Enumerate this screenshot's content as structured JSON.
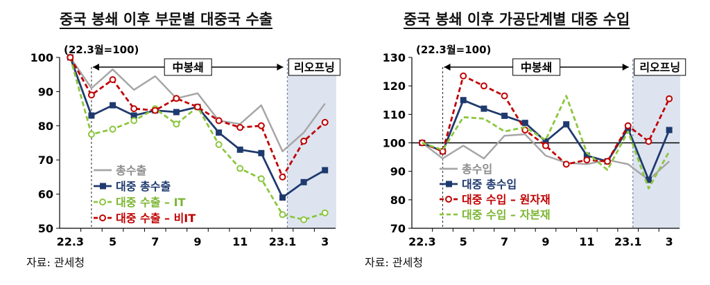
{
  "chart_data": [
    {
      "type": "line",
      "title": "중국 봉쇄 이후 부문별 대중국 수출",
      "unit_note": "(22.3월=100)",
      "x": [
        "22.3",
        "22.4",
        "5",
        "22.6",
        "7",
        "22.8",
        "9",
        "22.10",
        "11",
        "22.12",
        "23.1",
        "23.2",
        "3"
      ],
      "xtick_labels": [
        "22.3",
        "5",
        "7",
        "9",
        "11",
        "23.1",
        "3"
      ],
      "xtick_positions": [
        0,
        2,
        4,
        6,
        8,
        10,
        12
      ],
      "ylim": [
        50,
        100
      ],
      "yticks": [
        50,
        60,
        70,
        80,
        90,
        100
      ],
      "lockdown_label": "中봉쇄",
      "reopening_label": "리오프닝",
      "lockdown_range": [
        1,
        10
      ],
      "reopening_range": [
        10,
        12
      ],
      "series": [
        {
          "name": "총수출",
          "style": "gray",
          "values": [
            100,
            91,
            96.5,
            90.5,
            94.5,
            88,
            89.5,
            81.5,
            80.5,
            86,
            72.5,
            78,
            86.5
          ]
        },
        {
          "name": "대중 총수출",
          "style": "navy",
          "values": [
            100,
            83,
            86,
            83,
            84.5,
            84,
            85.5,
            78,
            73,
            72,
            59,
            63.5,
            67
          ]
        },
        {
          "name": "대중 수출 – IT",
          "style": "green",
          "values": [
            100,
            77.5,
            79,
            81.5,
            85,
            80.5,
            85.5,
            74.5,
            67.5,
            64.5,
            54,
            52.5,
            54.5
          ]
        },
        {
          "name": "대중 수출 – 비IT",
          "style": "red",
          "values": [
            100,
            89,
            93.5,
            85,
            84.5,
            88,
            85.5,
            81.5,
            79.5,
            80,
            65,
            75.5,
            81
          ]
        }
      ],
      "legend_position": "bottom-left",
      "source": "자료: 관세청"
    },
    {
      "type": "line",
      "title": "중국 봉쇄 이후 가공단계별 대중 수입",
      "unit_note": "(22.3월=100)",
      "x": [
        "22.3",
        "22.4",
        "5",
        "22.6",
        "7",
        "22.8",
        "9",
        "22.10",
        "11",
        "22.12",
        "23.1",
        "23.2",
        "3"
      ],
      "xtick_labels": [
        "22.3",
        "5",
        "7",
        "9",
        "11",
        "23.1",
        "3"
      ],
      "xtick_positions": [
        0,
        2,
        4,
        6,
        8,
        10,
        12
      ],
      "ylim": [
        70,
        130
      ],
      "yticks": [
        70,
        80,
        90,
        100,
        110,
        120,
        130
      ],
      "reference_line": 100,
      "lockdown_label": "中봉쇄",
      "reopening_label": "리오프닝",
      "lockdown_range": [
        1,
        10
      ],
      "reopening_range": [
        10,
        12
      ],
      "series": [
        {
          "name": "총수입",
          "style": "gray",
          "values": [
            100,
            94.5,
            99,
            94.5,
            102.5,
            103,
            95.5,
            93,
            92.5,
            94,
            92.5,
            87,
            93.5
          ]
        },
        {
          "name": "대중 총수입",
          "style": "navy",
          "values": [
            100,
            97,
            115,
            112,
            109.5,
            107,
            100.5,
            106.5,
            95.5,
            93.5,
            105,
            87,
            104.5
          ]
        },
        {
          "name": "대중 수입 – 원자재",
          "style": "red",
          "values": [
            100,
            97,
            123.5,
            120,
            116.5,
            104.5,
            99,
            92.5,
            94,
            93.5,
            106,
            100.5,
            115.5
          ]
        },
        {
          "name": "대중 수입 – 자본재",
          "style": "green",
          "values": [
            100,
            97.5,
            109,
            108.5,
            104,
            105.5,
            101,
            116.5,
            96.5,
            90.5,
            104,
            84,
            97
          ]
        }
      ],
      "legend_position": "bottom-left",
      "source": "자료: 관세청"
    }
  ],
  "colors": {
    "gray": "#a6a6a6",
    "navy": "#1f3a6e",
    "green": "#8cc63f",
    "red": "#c00000",
    "reopening_fill": "#dde4f0",
    "reopening_border": "#6f7fa6",
    "axis": "#000000"
  }
}
